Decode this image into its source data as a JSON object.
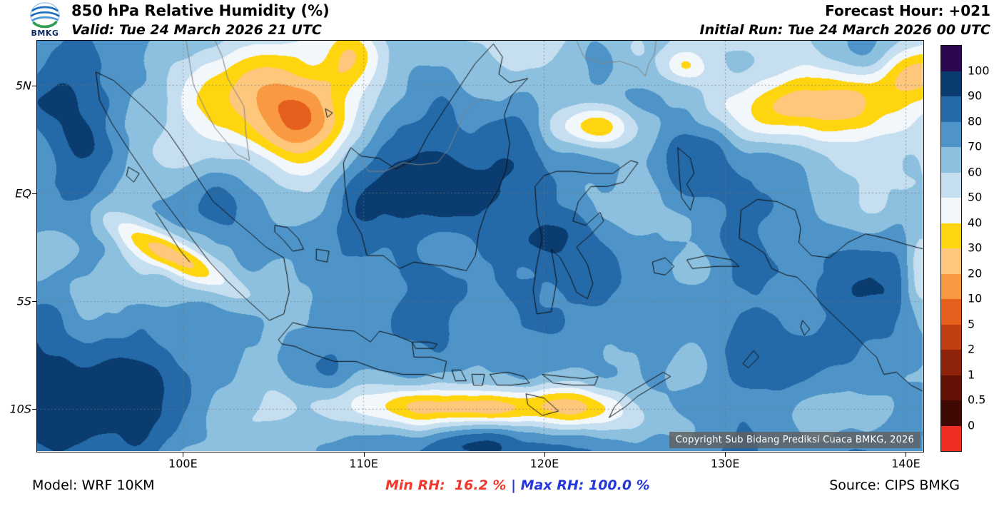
{
  "header": {
    "logo_text": "BMKG",
    "logo_icon": "bmkg-logo",
    "title": "850 hPa Relative Humidity (%)",
    "valid_label": "Valid: Tue 24 March 2026 21 UTC",
    "forecast_hour": "Forecast Hour: +021",
    "initial_run": "Initial Run: Tue 24 March 2026 00 UTC"
  },
  "footer": {
    "model": "Model: WRF 10KM",
    "min_rh_label": "Min RH:  16.2 %",
    "separator": " | ",
    "max_rh_label": "Max RH: 100.0 %",
    "source": "Source: CIPS BMKG"
  },
  "map": {
    "copyright": "Copyright Sub Bidang Prediksi Cuaca BMKG, 2026",
    "extent": {
      "lon_min": 91.95,
      "lon_max": 140.95,
      "lat_min": -11.95,
      "lat_max": 7.05
    },
    "x_ticks": [
      {
        "label": "100E",
        "lon": 100
      },
      {
        "label": "110E",
        "lon": 110
      },
      {
        "label": "120E",
        "lon": 120
      },
      {
        "label": "130E",
        "lon": 130
      },
      {
        "label": "140E",
        "lon": 140
      }
    ],
    "y_ticks": [
      {
        "label": "5N",
        "lat": 5
      },
      {
        "label": "EQ",
        "lat": 0
      },
      {
        "label": "5S",
        "lat": -5
      },
      {
        "label": "10S",
        "lat": -10
      }
    ]
  },
  "colorbar": {
    "unit": "%",
    "labels": [
      "100",
      "90",
      "80",
      "70",
      "60",
      "50",
      "40",
      "30",
      "20",
      "10",
      "5",
      "2",
      "1",
      "0.5",
      "0"
    ],
    "colors_top_to_bottom": [
      "#2c0850",
      "#0b3c6f",
      "#2469a8",
      "#4e94c8",
      "#8cc0de",
      "#c5def0",
      "#f2f7fb",
      "#ffd50f",
      "#fdc77c",
      "#f99a42",
      "#e65f1c",
      "#bf3f12",
      "#8f230c",
      "#641106",
      "#3f0a04",
      "#ef2f22"
    ]
  },
  "colors": {
    "min_rh": "#f0382c",
    "max_rh": "#2438dd",
    "separator": "#2438dd",
    "grid": "#6e7882",
    "coast": "#0f0f0f",
    "border_gray": "#828282"
  }
}
